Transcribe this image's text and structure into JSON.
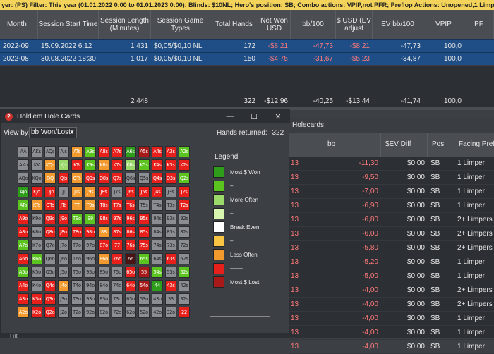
{
  "filter_bar": "yer:       (PS)   Filter:  This year (01.01.2022 0:00 to 01.01.2023 0:00); Blinds: $10NL; Hero's position: SB; Combo actions: VPIP,not PFR; Preflop Actions: Unopened,1 Limper,2+ Limpers",
  "columns": [
    "Month",
    "Session Start Time",
    "Session Length (Minutes)",
    "Session Game Types",
    "Total Hands",
    "Net Won USD",
    "bb/100",
    "$ USD (EV adjust",
    "EV bb/100",
    "VPIP",
    "PF"
  ],
  "rows": [
    [
      "2022-09",
      "15.09.2022 6:12",
      "1 431",
      "$0,05/$0,10 NL",
      "172",
      "-$8,21",
      "-47,73",
      "-$8,21",
      "-47,73",
      "100,0"
    ],
    [
      "2022-08",
      "30.08.2022 18:30",
      "1 017",
      "$0,05/$0,10 NL",
      "150",
      "-$4,75",
      "-31,67",
      "-$5,23",
      "-34,87",
      "100,0"
    ]
  ],
  "totals": [
    "2 448",
    "322",
    "-$12,96",
    "-40,25",
    "-$13,44",
    "-41,74",
    "100,0"
  ],
  "dialog": {
    "title": "Hold'em Hole Cards",
    "logo": "2",
    "view_by_label": "View by:",
    "view_by_value": "bb Won/Lost",
    "hands_returned_label": "Hands returned:",
    "hands_returned_value": "322",
    "legend_title": "Legend",
    "legend": [
      {
        "label": "Most $ Won",
        "color": "#2e9e1a"
      },
      {
        "label": "–",
        "color": "#5cc41e"
      },
      {
        "label": "More Often",
        "color": "#9ad96a"
      },
      {
        "label": "–",
        "color": "#d8f5b0"
      },
      {
        "label": "Break Even",
        "color": "#ffffff"
      },
      {
        "label": "–",
        "color": "#f8c444"
      },
      {
        "label": "Less Often",
        "color": "#f39a2e"
      },
      {
        "label": "––––",
        "color": "#e8201c"
      },
      {
        "label": "Most $ Lost",
        "color": "#a81a1a"
      }
    ],
    "grid": [
      [
        "AA",
        "AKs",
        "AQs",
        "AJs",
        "ATs",
        "A9s",
        "A8s",
        "A7s",
        "A6s",
        "A5s",
        "A4s",
        "A3s",
        "A2s"
      ],
      [
        "AKo",
        "KK",
        "KQs",
        "KJs",
        "KTs",
        "K9s",
        "K8s",
        "K7s",
        "K6s",
        "K5s",
        "K4s",
        "K3s",
        "K2s"
      ],
      [
        "AQo",
        "KQo",
        "QQ",
        "QJs",
        "QTs",
        "Q9s",
        "Q8s",
        "Q7s",
        "Q6s",
        "Q5s",
        "Q4s",
        "Q3s",
        "Q2s"
      ],
      [
        "AJo",
        "KJo",
        "QJo",
        "JJ",
        "JTs",
        "J9s",
        "J8s",
        "J7s",
        "J6s",
        "J5s",
        "J4s",
        "J3s",
        "J2s"
      ],
      [
        "ATo",
        "KTo",
        "QTo",
        "JTo",
        "TT",
        "T9s",
        "T8s",
        "T7s",
        "T6s",
        "T5s",
        "T4s",
        "T3s",
        "T2s"
      ],
      [
        "A9o",
        "K9o",
        "Q9o",
        "J9o",
        "T9o",
        "99",
        "98s",
        "97s",
        "96s",
        "95s",
        "94s",
        "93s",
        "92s"
      ],
      [
        "A8o",
        "K8o",
        "Q8o",
        "J8o",
        "T8o",
        "98o",
        "88",
        "87s",
        "86s",
        "85s",
        "84s",
        "83s",
        "82s"
      ],
      [
        "A7o",
        "K7o",
        "Q7o",
        "J7o",
        "T7o",
        "97o",
        "87o",
        "77",
        "76s",
        "75s",
        "74s",
        "73s",
        "72s"
      ],
      [
        "A6o",
        "K6o",
        "Q6o",
        "J6o",
        "T6o",
        "96o",
        "86o",
        "76o",
        "66",
        "65s",
        "64s",
        "63s",
        "62s"
      ],
      [
        "A5o",
        "K5o",
        "Q5o",
        "J5o",
        "T5o",
        "95o",
        "85o",
        "75o",
        "65o",
        "55",
        "54s",
        "53s",
        "52s"
      ],
      [
        "A4o",
        "K4o",
        "Q4o",
        "J4o",
        "T4o",
        "94o",
        "84o",
        "74o",
        "64o",
        "54o",
        "44",
        "43s",
        "42s"
      ],
      [
        "A3o",
        "K3o",
        "Q3o",
        "J3o",
        "T3o",
        "93o",
        "83o",
        "73o",
        "63o",
        "53o",
        "43o",
        "33",
        "32s"
      ],
      [
        "A2o",
        "K2o",
        "Q2o",
        "J2o",
        "T2o",
        "92o",
        "82o",
        "72o",
        "62o",
        "52o",
        "42o",
        "32o",
        "22"
      ]
    ],
    "grid_colors": [
      [
        "g",
        "g",
        "g",
        "g",
        "o",
        "l",
        "r",
        "r",
        "G",
        "R",
        "r",
        "r",
        "l"
      ],
      [
        "g",
        "g",
        "o",
        "L",
        "r",
        "l",
        "o",
        "r",
        "L",
        "l",
        "r",
        "r",
        "r"
      ],
      [
        "g",
        "g",
        "o",
        "r",
        "o",
        "r",
        "r",
        "r",
        "g",
        "g",
        "r",
        "r",
        "l"
      ],
      [
        "G",
        "r",
        "r",
        "g",
        "o",
        "o",
        "r",
        "g",
        "r",
        "r",
        "r",
        "g",
        "r"
      ],
      [
        "l",
        "o",
        "r",
        "r",
        "o",
        "o",
        "r",
        "r",
        "r",
        "g",
        "g",
        "g",
        "r"
      ],
      [
        "r",
        "g",
        "r",
        "r",
        "l",
        "l",
        "r",
        "r",
        "r",
        "r",
        "g",
        "g",
        "g"
      ],
      [
        "r",
        "g",
        "r",
        "r",
        "r",
        "r",
        "o",
        "r",
        "r",
        "r",
        "g",
        "g",
        "g"
      ],
      [
        "l",
        "g",
        "g",
        "g",
        "g",
        "g",
        "r",
        "r",
        "r",
        "r",
        "g",
        "g",
        "g"
      ],
      [
        "r",
        "l",
        "g",
        "g",
        "g",
        "g",
        "o",
        "r",
        "D",
        "l",
        "g",
        "r",
        "g"
      ],
      [
        "l",
        "g",
        "g",
        "g",
        "g",
        "g",
        "g",
        "g",
        "r",
        "R",
        "l",
        "g",
        "l"
      ],
      [
        "r",
        "g",
        "r",
        "o",
        "g",
        "g",
        "g",
        "g",
        "r",
        "R",
        "G",
        "r",
        "g"
      ],
      [
        "r",
        "r",
        "r",
        "g",
        "g",
        "g",
        "g",
        "g",
        "g",
        "g",
        "g",
        "g",
        "g"
      ],
      [
        "o",
        "r",
        "r",
        "g",
        "g",
        "g",
        "g",
        "g",
        "g",
        "g",
        "g",
        "g",
        "r"
      ]
    ]
  },
  "right_panel": {
    "title": "Holecards",
    "columns": [
      "bb",
      "$EV Diff",
      "Pos",
      "Facing Preflo"
    ],
    "prefix_col": "13",
    "rows": [
      [
        "-11,30",
        "$0,00",
        "SB",
        "1 Limper"
      ],
      [
        "-9,50",
        "$0,00",
        "SB",
        "1 Limper"
      ],
      [
        "-7,00",
        "$0,00",
        "SB",
        "1 Limper"
      ],
      [
        "-6,90",
        "$0,00",
        "SB",
        "1 Limper"
      ],
      [
        "-6,80",
        "$0,00",
        "SB",
        "2+ Limpers"
      ],
      [
        "-6,00",
        "$0,00",
        "SB",
        "2+ Limpers"
      ],
      [
        "-5,80",
        "$0,00",
        "SB",
        "2+ Limpers"
      ],
      [
        "-5,20",
        "$0,00",
        "SB",
        "1 Limper"
      ],
      [
        "-5,00",
        "$0,00",
        "SB",
        "1 Limper"
      ],
      [
        "-4,00",
        "$0,00",
        "SB",
        "2+ Limpers"
      ],
      [
        "-4,00",
        "$0,00",
        "SB",
        "2+ Limpers"
      ],
      [
        "-4,00",
        "$0,00",
        "SB",
        "1 Limper"
      ],
      [
        "-4,00",
        "$0,00",
        "SB",
        "1 Limper"
      ],
      [
        "-4,00",
        "$0,00",
        "SB",
        "1 Limper"
      ]
    ]
  },
  "bottom_label": "Filt"
}
